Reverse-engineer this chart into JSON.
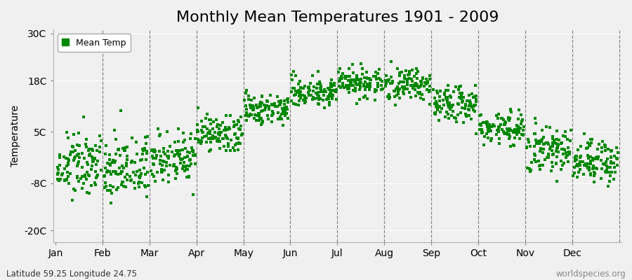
{
  "title": "Monthly Mean Temperatures 1901 - 2009",
  "ylabel": "Temperature",
  "xlabel": "",
  "subtitle_left": "Latitude 59.25 Longitude 24.75",
  "subtitle_right": "worldspecies.org",
  "legend_label": "Mean Temp",
  "dot_color": "#008800",
  "background_color": "#f0f0f0",
  "plot_background": "#f0f0f0",
  "yticks": [
    -20,
    -8,
    5,
    18,
    30
  ],
  "ytick_labels": [
    "-20C",
    "-8C",
    "5C",
    "18C",
    "30C"
  ],
  "ylim": [
    -23,
    31
  ],
  "months": [
    "Jan",
    "Feb",
    "Mar",
    "Apr",
    "May",
    "Jun",
    "Jul",
    "Aug",
    "Sep",
    "Oct",
    "Nov",
    "Dec"
  ],
  "mean_temps": [
    -3.5,
    -4.5,
    -1.5,
    4.5,
    10.5,
    15.5,
    17.5,
    17.0,
    12.0,
    6.0,
    1.0,
    -2.5
  ],
  "std_temps": [
    3.8,
    3.8,
    3.2,
    2.5,
    2.3,
    2.0,
    1.8,
    2.0,
    2.0,
    2.2,
    2.8,
    3.2
  ],
  "num_years": 109,
  "title_fontsize": 16,
  "label_fontsize": 10,
  "tick_fontsize": 10
}
